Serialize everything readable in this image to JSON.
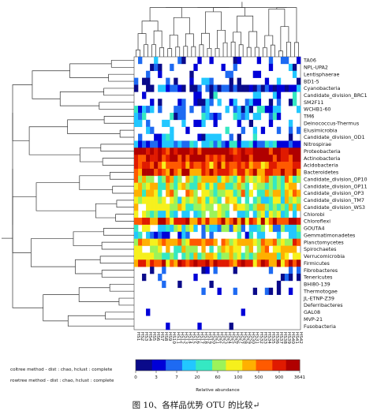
{
  "caption": "图 10、各样品优势 OTU 的比较↵",
  "coltree_text": "coltree method - dist : chao, hclust : complete",
  "rowtree_text": "rowtree method - dist : chao, hclust : complete",
  "chart_data": {
    "type": "heatmap",
    "rows": [
      "TA06",
      "NPL-UPA2",
      "Lentisphaerae",
      "BD1-5",
      "Cyanobacteria",
      "Candidate_division_BRC1",
      "SM2F11",
      "WCHB1-60",
      "TM6",
      "Deinococcus-Thermus",
      "Elusimicrobia",
      "Candidate_division_OD1",
      "Nitrospirae",
      "Proteobacteria",
      "Actinobacteria",
      "Acidobacteria",
      "Bacteroidetes",
      "Candidate_division_OP10",
      "Candidate_division_OP11",
      "Candidate_division_OP3",
      "Candidate_division_TM7",
      "Candidate_division_WS3",
      "Chlorobi",
      "Chloroflexi",
      "GOUTA4",
      "Gemmatimonadetes",
      "Planctomycetes",
      "Spirochaetes",
      "Verrucomicrobia",
      "Firmicutes",
      "Fibrobacteres",
      "Tenericutes",
      "BHI80-139",
      "Thermotogae",
      "JL-ETNP-Z39",
      "Deferribacteres",
      "GAL08",
      "MVP-21",
      "Fusobacteria"
    ],
    "row_profile": [
      0.18,
      0.14,
      0.16,
      0.2,
      0.12,
      0.24,
      0.22,
      0.24,
      0.25,
      0.22,
      0.2,
      0.22,
      0.3,
      0.95,
      0.9,
      0.78,
      0.82,
      0.6,
      0.55,
      0.57,
      0.5,
      0.55,
      0.45,
      0.8,
      0.4,
      0.3,
      0.65,
      0.6,
      0.55,
      0.8,
      0.12,
      0.08,
      0.04,
      0.05,
      0.03,
      0.02,
      0.02,
      0.02,
      0.02
    ],
    "row_density": [
      0.33,
      0.28,
      0.3,
      0.35,
      0.85,
      0.4,
      0.38,
      0.5,
      0.45,
      0.35,
      0.3,
      0.45,
      0.9,
      1.0,
      1.0,
      1.0,
      1.0,
      0.95,
      0.92,
      0.92,
      0.85,
      0.9,
      0.85,
      1.0,
      0.75,
      0.55,
      0.95,
      0.85,
      0.9,
      1.0,
      0.15,
      0.18,
      0.08,
      0.14,
      0.06,
      0.05,
      0.05,
      0.04,
      0.1
    ],
    "n_samples": 42,
    "colorbar_ticks": [
      "0",
      "3",
      "7",
      "20",
      "60",
      "100",
      "500",
      "900",
      "3641"
    ],
    "colorbar_label": "Relative abundance",
    "colormap": [
      "#0a0a8a",
      "#0000d8",
      "#1e6af2",
      "#22c7ff",
      "#35e8c3",
      "#9cf35a",
      "#f6f01c",
      "#ffb000",
      "#ff5a00",
      "#e01a00",
      "#b00000"
    ]
  }
}
